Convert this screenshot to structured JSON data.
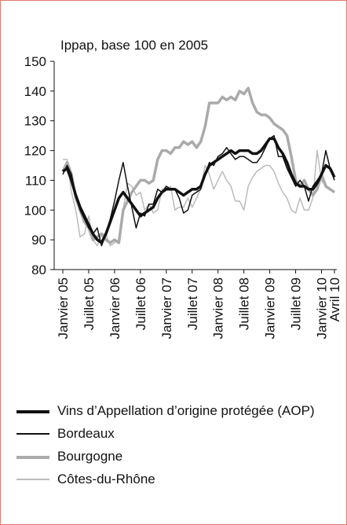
{
  "chart_data": {
    "type": "line",
    "title": "Ippap, base 100 en 2005",
    "categories": [
      "Janvier 05",
      null,
      null,
      null,
      null,
      null,
      "Juillet 05",
      null,
      null,
      null,
      null,
      null,
      "Janvier 06",
      null,
      null,
      null,
      null,
      null,
      "Juillet 06",
      null,
      null,
      null,
      null,
      null,
      "Janvier 07",
      null,
      null,
      null,
      null,
      null,
      "Juillet 07",
      null,
      null,
      null,
      null,
      null,
      "Janvier 08",
      null,
      null,
      null,
      null,
      null,
      "Juillet 08",
      null,
      null,
      null,
      null,
      null,
      "Janvier 09",
      null,
      null,
      null,
      null,
      null,
      "Juillet 09",
      null,
      null,
      null,
      null,
      null,
      "Janvier 10",
      null,
      null,
      "Avril 10"
    ],
    "series": [
      {
        "name": "Vins d’Appellation d’origine protégée (AOP)",
        "color": "#111111",
        "line_width": 3.5,
        "values": [
          113,
          114,
          110,
          105,
          101,
          98,
          95,
          92,
          90,
          89,
          92,
          96,
          100,
          104,
          106,
          104,
          102,
          100,
          98,
          99,
          100,
          101,
          104,
          106,
          107,
          107,
          107,
          106,
          105,
          106,
          107,
          107,
          108,
          112,
          115,
          116,
          117,
          118,
          119,
          120,
          119,
          120,
          120,
          120,
          119,
          119,
          120,
          122,
          124,
          124,
          121,
          119,
          116,
          112,
          109,
          108,
          108,
          107,
          107,
          109,
          112,
          115,
          114,
          111
        ]
      },
      {
        "name": "Bordeaux",
        "color": "#111111",
        "line_width": 1.5,
        "values": [
          112,
          115,
          112,
          105,
          100,
          97,
          94,
          92,
          94,
          88,
          92,
          97,
          103,
          110,
          116,
          108,
          101,
          94,
          99,
          98,
          102,
          102,
          107,
          106,
          108,
          107,
          107,
          104,
          99,
          100,
          105,
          106,
          107,
          112,
          116,
          115,
          118,
          119,
          121,
          119,
          117,
          118,
          118,
          117,
          116,
          116,
          118,
          121,
          124,
          125,
          118,
          118,
          114,
          111,
          108,
          110,
          108,
          103,
          108,
          110,
          112,
          120,
          114,
          110
        ]
      },
      {
        "name": "Bourgogne",
        "color": "#aaaaaa",
        "line_width": 3.5,
        "values": [
          113,
          116,
          112,
          104,
          100,
          96,
          94,
          90,
          91,
          92,
          90,
          89,
          90,
          89,
          100,
          103,
          106,
          108,
          110,
          110,
          109,
          110,
          117,
          120,
          120,
          119,
          121,
          121,
          123,
          122,
          123,
          121,
          123,
          128,
          136,
          136,
          136,
          138,
          137,
          138,
          137,
          140,
          139,
          141,
          136,
          133,
          132,
          132,
          131,
          129,
          128,
          127,
          125,
          118,
          110,
          108,
          110,
          107,
          105,
          107,
          112,
          108,
          107,
          106
        ]
      },
      {
        "name": "Côtes-du-Rhône",
        "color": "#bbbbbb",
        "line_width": 1.5,
        "values": [
          117,
          117,
          106,
          100,
          91,
          92,
          98,
          90,
          88,
          92,
          92,
          88,
          89,
          90,
          100,
          109,
          108,
          105,
          106,
          100,
          102,
          99,
          100,
          107,
          107,
          108,
          100,
          101,
          101,
          104,
          101,
          104,
          107,
          115,
          112,
          107,
          110,
          113,
          110,
          108,
          103,
          103,
          100,
          108,
          111,
          113,
          114,
          115,
          115,
          113,
          109,
          106,
          104,
          100,
          99,
          104,
          100,
          100,
          104,
          120,
          110,
          108,
          107,
          106
        ]
      }
    ],
    "ylim": [
      80,
      150
    ],
    "yticks": [
      80,
      90,
      100,
      110,
      120,
      130,
      140,
      150
    ]
  }
}
